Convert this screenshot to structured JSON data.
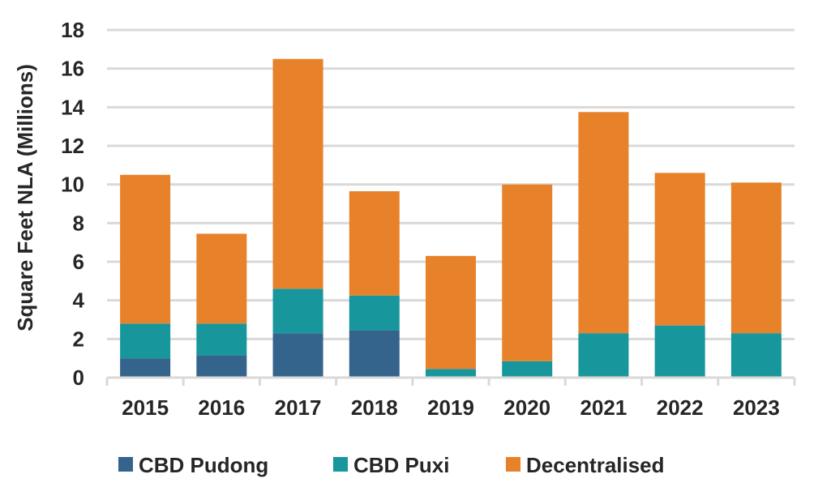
{
  "chart_data": {
    "type": "bar",
    "stacked": true,
    "title": "",
    "xlabel": "",
    "ylabel": "Square Feet NLA (Millions)",
    "ylim": [
      0,
      18
    ],
    "yticks": [
      0,
      2,
      4,
      6,
      8,
      10,
      12,
      14,
      16,
      18
    ],
    "grid": true,
    "legend_position": "bottom",
    "categories": [
      "2015",
      "2016",
      "2017",
      "2018",
      "2019",
      "2020",
      "2021",
      "2022",
      "2023"
    ],
    "series": [
      {
        "name": "CBD Pudong",
        "color": "#34648c",
        "values": [
          1.0,
          1.15,
          2.3,
          2.45,
          0,
          0,
          0,
          0,
          0
        ]
      },
      {
        "name": "CBD Puxi",
        "color": "#17969c",
        "values": [
          1.8,
          1.65,
          2.3,
          1.8,
          0.45,
          0.85,
          2.3,
          2.7,
          2.3
        ]
      },
      {
        "name": "Decentralised",
        "color": "#e8822a",
        "values": [
          7.7,
          4.65,
          11.9,
          5.4,
          5.85,
          9.15,
          11.45,
          7.9,
          7.8
        ]
      }
    ]
  },
  "colors": {
    "grid": "#d9d9d9",
    "axis": "#d9d9d9",
    "text": "#262626"
  }
}
